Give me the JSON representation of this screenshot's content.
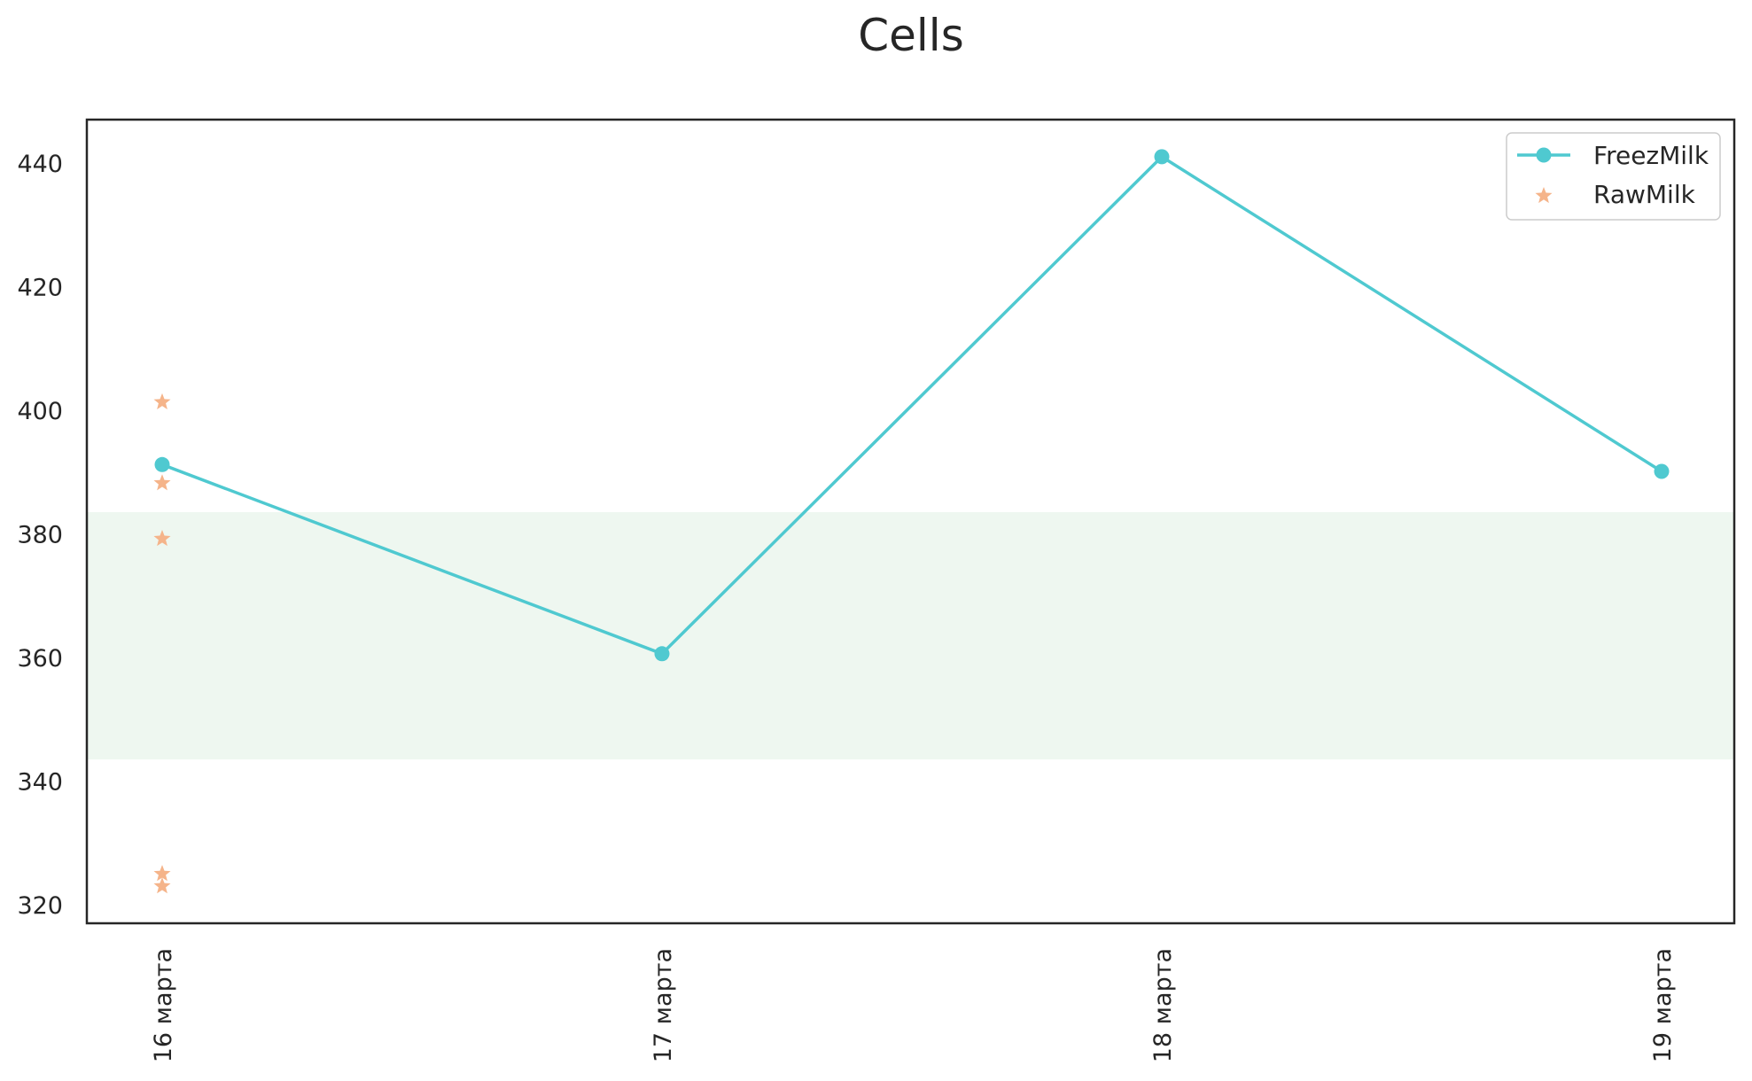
{
  "chart_data": {
    "type": "line",
    "title": "Cells",
    "xlabel": "",
    "ylabel": "",
    "categories": [
      "16 марта",
      "17 марта",
      "18 марта",
      "19 марта"
    ],
    "ylim": [
      317,
      447
    ],
    "yticks": [
      320,
      340,
      360,
      380,
      400,
      420,
      440
    ],
    "band": {
      "from": 343.5,
      "to": 383.5,
      "color": "#eef7f0"
    },
    "grid": false,
    "legend": {
      "position": "top-right"
    },
    "series": [
      {
        "name": "FreezMilk",
        "kind": "line",
        "marker": "circle",
        "color": "#4fc9d0",
        "points": [
          {
            "x": "16 марта",
            "y": 391.2
          },
          {
            "x": "17 марта",
            "y": 360.6
          },
          {
            "x": "18 марта",
            "y": 441.0
          },
          {
            "x": "19 марта",
            "y": 390.1
          }
        ]
      },
      {
        "name": "RawMilk",
        "kind": "scatter",
        "marker": "star",
        "color": "#f5b48a",
        "points": [
          {
            "x": "16 марта",
            "y": 401.3
          },
          {
            "x": "16 марта",
            "y": 388.2
          },
          {
            "x": "16 марта",
            "y": 379.2
          },
          {
            "x": "16 марта",
            "y": 325.0
          },
          {
            "x": "16 марта",
            "y": 323.0
          }
        ]
      }
    ]
  }
}
